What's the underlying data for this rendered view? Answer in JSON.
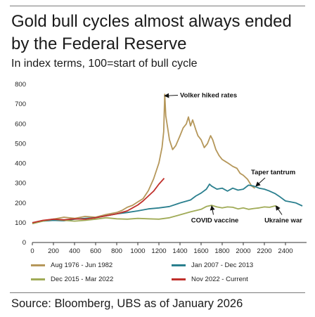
{
  "header": {
    "title": "Gold bull cycles almost always ended by the Federal Reserve",
    "subtitle": "In index terms, 100=start of bull cycle"
  },
  "source": "Source: Bloomberg, UBS as of January 2026",
  "chart_data": {
    "type": "line",
    "title": "Gold bull cycles almost always ended by the Federal Reserve",
    "subtitle": "In index terms, 100=start of bull cycle",
    "xlabel": "",
    "ylabel": "",
    "xlim": [
      0,
      2560
    ],
    "ylim": [
      0,
      800
    ],
    "x_ticks": [
      0,
      200,
      400,
      600,
      800,
      1000,
      1200,
      1400,
      1600,
      1800,
      2000,
      2200,
      2400
    ],
    "y_ticks": [
      0,
      100,
      200,
      300,
      400,
      500,
      600,
      700,
      800
    ],
    "grid": false,
    "legend_position": "bottom",
    "series": [
      {
        "name": "Aug 1976 - Jun 1982",
        "color": "#b5975a",
        "points": [
          [
            0,
            100
          ],
          [
            100,
            110
          ],
          [
            200,
            118
          ],
          [
            300,
            128
          ],
          [
            400,
            122
          ],
          [
            500,
            132
          ],
          [
            600,
            128
          ],
          [
            700,
            142
          ],
          [
            800,
            152
          ],
          [
            850,
            162
          ],
          [
            900,
            178
          ],
          [
            950,
            188
          ],
          [
            1000,
            205
          ],
          [
            1050,
            222
          ],
          [
            1100,
            262
          ],
          [
            1150,
            322
          ],
          [
            1200,
            402
          ],
          [
            1230,
            482
          ],
          [
            1245,
            560
          ],
          [
            1255,
            750
          ],
          [
            1265,
            640
          ],
          [
            1280,
            590
          ],
          [
            1300,
            520
          ],
          [
            1330,
            470
          ],
          [
            1360,
            490
          ],
          [
            1400,
            540
          ],
          [
            1430,
            580
          ],
          [
            1460,
            600
          ],
          [
            1480,
            635
          ],
          [
            1500,
            590
          ],
          [
            1520,
            620
          ],
          [
            1550,
            570
          ],
          [
            1570,
            540
          ],
          [
            1600,
            520
          ],
          [
            1630,
            480
          ],
          [
            1660,
            500
          ],
          [
            1690,
            540
          ],
          [
            1710,
            520
          ],
          [
            1740,
            470
          ],
          [
            1770,
            440
          ],
          [
            1800,
            420
          ],
          [
            1830,
            410
          ],
          [
            1860,
            400
          ],
          [
            1900,
            385
          ],
          [
            1940,
            375
          ],
          [
            1970,
            350
          ],
          [
            2000,
            340
          ],
          [
            2040,
            320
          ],
          [
            2080,
            285
          ],
          [
            2110,
            275
          ]
        ]
      },
      {
        "name": "Jan 2007 - Dec 2013",
        "color": "#2a7f8e",
        "points": [
          [
            0,
            100
          ],
          [
            100,
            108
          ],
          [
            200,
            112
          ],
          [
            300,
            110
          ],
          [
            400,
            118
          ],
          [
            500,
            122
          ],
          [
            600,
            125
          ],
          [
            700,
            135
          ],
          [
            800,
            145
          ],
          [
            900,
            152
          ],
          [
            1000,
            160
          ],
          [
            1100,
            170
          ],
          [
            1200,
            175
          ],
          [
            1300,
            182
          ],
          [
            1400,
            200
          ],
          [
            1500,
            215
          ],
          [
            1550,
            235
          ],
          [
            1600,
            250
          ],
          [
            1650,
            270
          ],
          [
            1680,
            295
          ],
          [
            1700,
            285
          ],
          [
            1750,
            270
          ],
          [
            1800,
            275
          ],
          [
            1850,
            260
          ],
          [
            1900,
            275
          ],
          [
            1950,
            265
          ],
          [
            2000,
            270
          ],
          [
            2050,
            290
          ],
          [
            2100,
            285
          ],
          [
            2150,
            275
          ],
          [
            2200,
            270
          ],
          [
            2250,
            260
          ],
          [
            2300,
            248
          ],
          [
            2350,
            230
          ],
          [
            2400,
            210
          ],
          [
            2450,
            205
          ],
          [
            2500,
            200
          ],
          [
            2560,
            185
          ]
        ]
      },
      {
        "name": "Dec 2015 - Mar 2022",
        "color": "#a0ab57",
        "points": [
          [
            0,
            95
          ],
          [
            100,
            108
          ],
          [
            200,
            118
          ],
          [
            300,
            112
          ],
          [
            400,
            108
          ],
          [
            500,
            112
          ],
          [
            600,
            118
          ],
          [
            700,
            125
          ],
          [
            800,
            120
          ],
          [
            900,
            118
          ],
          [
            1000,
            122
          ],
          [
            1100,
            120
          ],
          [
            1200,
            118
          ],
          [
            1300,
            125
          ],
          [
            1400,
            140
          ],
          [
            1500,
            155
          ],
          [
            1600,
            168
          ],
          [
            1650,
            182
          ],
          [
            1700,
            188
          ],
          [
            1750,
            180
          ],
          [
            1800,
            175
          ],
          [
            1850,
            180
          ],
          [
            1900,
            178
          ],
          [
            1950,
            170
          ],
          [
            2000,
            175
          ],
          [
            2050,
            168
          ],
          [
            2100,
            172
          ],
          [
            2150,
            175
          ],
          [
            2200,
            180
          ],
          [
            2250,
            178
          ],
          [
            2300,
            185
          ],
          [
            2330,
            180
          ]
        ]
      },
      {
        "name": "Nov 2022 - Current",
        "color": "#c0302b",
        "points": [
          [
            0,
            100
          ],
          [
            100,
            112
          ],
          [
            200,
            118
          ],
          [
            300,
            115
          ],
          [
            400,
            120
          ],
          [
            500,
            118
          ],
          [
            600,
            125
          ],
          [
            700,
            135
          ],
          [
            800,
            145
          ],
          [
            900,
            160
          ],
          [
            950,
            175
          ],
          [
            1000,
            190
          ],
          [
            1050,
            210
          ],
          [
            1100,
            235
          ],
          [
            1150,
            260
          ],
          [
            1200,
            295
          ],
          [
            1250,
            325
          ]
        ]
      }
    ],
    "annotations": [
      {
        "text": "Volker hiked rates",
        "x": 1255,
        "y": 742,
        "tx": 1400,
        "ty": 745
      },
      {
        "text": "Taper tantrum",
        "x": 2120,
        "y": 285,
        "tx": 2180,
        "ty": 345
      },
      {
        "text": "COVID vaccine",
        "x": 1700,
        "y": 185,
        "tx": 1730,
        "ty": 112
      },
      {
        "text": "Ukraine war",
        "x": 2310,
        "y": 185,
        "tx": 2380,
        "ty": 112
      }
    ]
  }
}
